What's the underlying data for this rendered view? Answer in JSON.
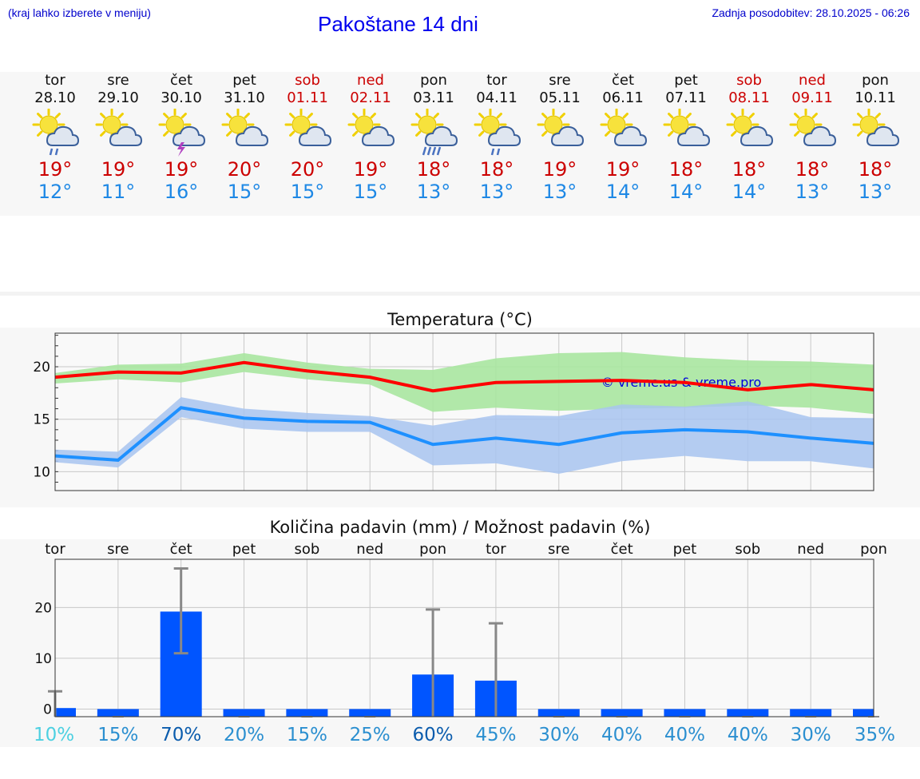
{
  "header": {
    "menu_hint": "(kraj lahko izberete v meniju)",
    "title": "Pakoštane 14 dni",
    "updated": "Zadnja posodobitev: 28.10.2025 - 06:26"
  },
  "colors": {
    "max": "#ff0000",
    "min": "#1e90ff",
    "max_band": "#a8e6a0",
    "min_band": "#a8c4f0",
    "rain": "#0055ff"
  },
  "days": [
    {
      "name": "tor",
      "date": "28.10",
      "weekend": false,
      "icon": "sun-cloud-rain-icon",
      "max": "19°",
      "min": "12°"
    },
    {
      "name": "sre",
      "date": "29.10",
      "weekend": false,
      "icon": "sun-cloud-icon",
      "max": "19°",
      "min": "11°"
    },
    {
      "name": "čet",
      "date": "30.10",
      "weekend": false,
      "icon": "sun-cloud-thunder-icon",
      "max": "19°",
      "min": "16°"
    },
    {
      "name": "pet",
      "date": "31.10",
      "weekend": false,
      "icon": "sun-cloud-icon",
      "max": "20°",
      "min": "15°"
    },
    {
      "name": "sob",
      "date": "01.11",
      "weekend": true,
      "icon": "sun-cloud-icon",
      "max": "20°",
      "min": "15°"
    },
    {
      "name": "ned",
      "date": "02.11",
      "weekend": true,
      "icon": "sun-cloud-icon",
      "max": "19°",
      "min": "15°"
    },
    {
      "name": "pon",
      "date": "03.11",
      "weekend": false,
      "icon": "sun-cloud-heavy-rain-icon",
      "max": "18°",
      "min": "13°"
    },
    {
      "name": "tor",
      "date": "04.11",
      "weekend": false,
      "icon": "sun-cloud-rain-icon",
      "max": "18°",
      "min": "13°"
    },
    {
      "name": "sre",
      "date": "05.11",
      "weekend": false,
      "icon": "sun-cloud-icon",
      "max": "19°",
      "min": "13°"
    },
    {
      "name": "čet",
      "date": "06.11",
      "weekend": false,
      "icon": "sun-cloud-icon",
      "max": "19°",
      "min": "14°"
    },
    {
      "name": "pet",
      "date": "07.11",
      "weekend": false,
      "icon": "sun-cloud-icon",
      "max": "18°",
      "min": "14°"
    },
    {
      "name": "sob",
      "date": "08.11",
      "weekend": true,
      "icon": "sun-cloud-icon",
      "max": "18°",
      "min": "14°"
    },
    {
      "name": "ned",
      "date": "09.11",
      "weekend": true,
      "icon": "sun-cloud-icon",
      "max": "18°",
      "min": "13°"
    },
    {
      "name": "pon",
      "date": "10.11",
      "weekend": false,
      "icon": "sun-cloud-icon",
      "max": "18°",
      "min": "13°"
    }
  ],
  "chart_data": [
    {
      "type": "line",
      "title": "Temperatura (°C)",
      "watermark": "© vreme.us & vreme.pro",
      "x": [
        "28.10",
        "29.10",
        "30.10",
        "31.10",
        "01.11",
        "02.11",
        "03.11",
        "04.11",
        "05.11",
        "06.11",
        "07.11",
        "08.11",
        "09.11",
        "10.11"
      ],
      "ylim": [
        8.2,
        23.2
      ],
      "yticks": [
        "10",
        "15",
        "20"
      ],
      "ytick_values": [
        10,
        15,
        20
      ],
      "grid": true,
      "series": [
        {
          "role": "max",
          "values": [
            19.0,
            19.5,
            19.4,
            20.4,
            19.6,
            19.0,
            17.7,
            18.5,
            18.6,
            18.7,
            18.5,
            17.8,
            18.3,
            17.8
          ]
        },
        {
          "role": "min",
          "values": [
            11.5,
            11.1,
            16.1,
            15.1,
            14.8,
            14.7,
            12.6,
            13.2,
            12.6,
            13.7,
            14.0,
            13.8,
            13.2,
            12.7
          ]
        }
      ],
      "bands": [
        {
          "role": "max",
          "low": [
            18.4,
            18.8,
            18.5,
            19.5,
            18.8,
            18.3,
            15.7,
            16.1,
            15.8,
            16.0,
            16.1,
            16.3,
            16.1,
            15.5
          ],
          "high": [
            19.4,
            20.2,
            20.3,
            21.3,
            20.4,
            19.8,
            19.7,
            20.8,
            21.3,
            21.4,
            20.9,
            20.6,
            20.5,
            20.2
          ]
        },
        {
          "role": "min",
          "low": [
            10.9,
            10.4,
            15.2,
            14.1,
            13.8,
            13.8,
            10.6,
            10.8,
            9.8,
            11.0,
            11.5,
            11.0,
            11.0,
            10.3
          ],
          "high": [
            12.1,
            11.9,
            17.1,
            16.0,
            15.6,
            15.3,
            14.4,
            15.4,
            15.3,
            16.4,
            16.2,
            16.7,
            15.2,
            15.1
          ]
        }
      ]
    },
    {
      "type": "bar",
      "title": "Količina padavin (mm) / Možnost padavin (%)",
      "categories": [
        "tor",
        "sre",
        "čet",
        "pet",
        "sob",
        "ned",
        "pon",
        "tor",
        "sre",
        "čet",
        "pet",
        "sob",
        "ned",
        "pon"
      ],
      "ylim": [
        -1.5,
        29.5
      ],
      "yticks": [
        "0",
        "10",
        "20"
      ],
      "ytick_values": [
        0,
        10,
        20
      ],
      "grid": true,
      "values": [
        0.2,
        0,
        19.2,
        0,
        0,
        0,
        6.8,
        5.6,
        0,
        0,
        0,
        0,
        0,
        0
      ],
      "error_low": [
        0,
        0,
        11,
        0,
        0,
        0,
        0,
        0,
        0,
        0,
        0,
        0,
        0,
        0
      ],
      "error_high": [
        3.5,
        0,
        27.7,
        0,
        0,
        0,
        19.6,
        16.9,
        0,
        0,
        0,
        0,
        0,
        0
      ],
      "probability": [
        "10%",
        "15%",
        "70%",
        "20%",
        "15%",
        "25%",
        "60%",
        "45%",
        "30%",
        "40%",
        "40%",
        "40%",
        "30%",
        "35%"
      ],
      "probability_values": [
        10,
        15,
        70,
        20,
        15,
        25,
        60,
        45,
        30,
        40,
        40,
        40,
        30,
        35
      ]
    }
  ]
}
